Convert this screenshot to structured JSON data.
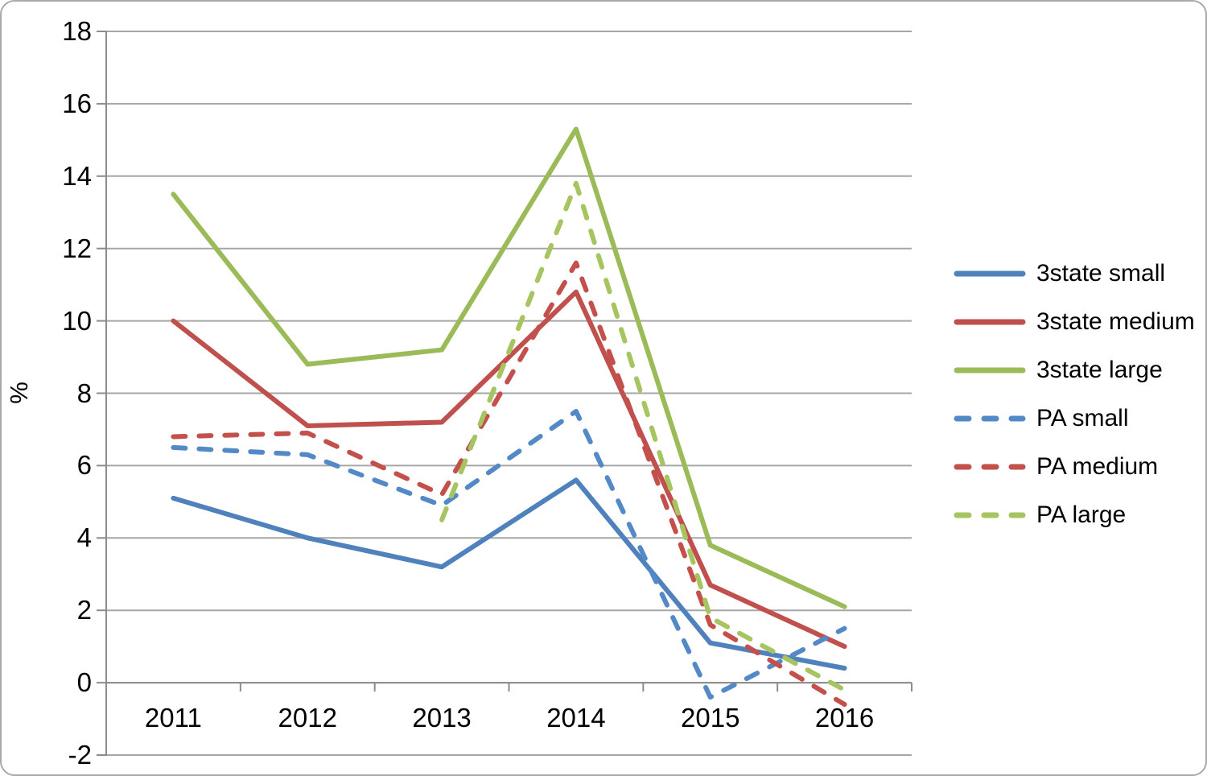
{
  "figure": {
    "background": "#ffffff",
    "border_color": "#a9a9a9"
  },
  "chart_data": {
    "type": "line",
    "title": "",
    "ylabel": "%",
    "xlabel": "",
    "categories": [
      "2011",
      "2012",
      "2013",
      "2014",
      "2015",
      "2016"
    ],
    "yticks": [
      18,
      16,
      14,
      12,
      10,
      8,
      6,
      4,
      2,
      0,
      -2
    ],
    "ylim": [
      -2,
      18
    ],
    "grid": true,
    "legend_position": "right",
    "gridline_color": "#a6a6a6",
    "axis_color": "#8c8c8c",
    "text_color": "#000000",
    "series": [
      {
        "name": "3state small",
        "color": "#4f81bd",
        "dash": false,
        "values": [
          5.1,
          4.0,
          3.2,
          5.6,
          1.1,
          0.4
        ]
      },
      {
        "name": "3state medium",
        "color": "#c0504d",
        "dash": false,
        "values": [
          10.0,
          7.1,
          7.2,
          10.8,
          2.7,
          1.0
        ]
      },
      {
        "name": "3state large",
        "color": "#9bbb59",
        "dash": false,
        "values": [
          13.5,
          8.8,
          9.2,
          15.3,
          3.8,
          2.1
        ]
      },
      {
        "name": "PA small",
        "color": "#5389c6",
        "dash": true,
        "values": [
          6.5,
          6.3,
          4.9,
          7.5,
          -0.4,
          1.5
        ]
      },
      {
        "name": "PA medium",
        "color": "#c4504c",
        "dash": true,
        "values": [
          6.8,
          6.9,
          5.2,
          11.6,
          1.6,
          -0.6
        ]
      },
      {
        "name": "PA large",
        "color": "#a6c45f",
        "dash": true,
        "values": [
          null,
          null,
          4.5,
          13.8,
          1.8,
          -0.2
        ]
      }
    ]
  }
}
